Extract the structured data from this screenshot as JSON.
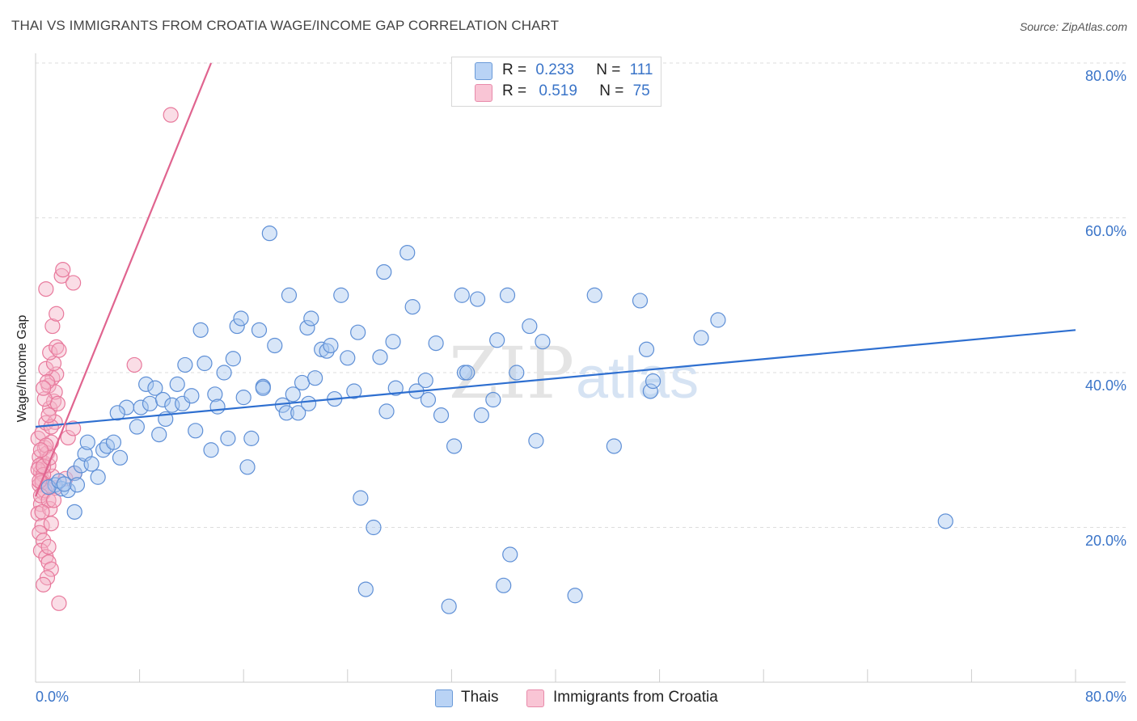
{
  "title": "THAI VS IMMIGRANTS FROM CROATIA WAGE/INCOME GAP CORRELATION CHART",
  "source": "Source: ZipAtlas.com",
  "watermark": "ZIPatlas",
  "legend_top": {
    "rows": [
      {
        "r_label": "R =",
        "r_value": "0.233",
        "n_label": "N =",
        "n_value": "111"
      },
      {
        "r_label": "R =",
        "r_value": "0.519",
        "n_label": "N =",
        "n_value": "75"
      }
    ]
  },
  "legend_bottom": {
    "items": [
      {
        "label": "Thais"
      },
      {
        "label": "Immigrants from Croatia"
      }
    ]
  },
  "colors": {
    "thais_fill": "#a9c8f0",
    "thais_stroke": "#5e8fd6",
    "thais_line": "#2e6fd0",
    "croatia_fill": "#f5b4c8",
    "croatia_stroke": "#e8799c",
    "croatia_line": "#e0648f",
    "axis_text": "#3a74c8",
    "grid": "#dddddd"
  },
  "chart_data": {
    "type": "scatter",
    "title": "THAI VS IMMIGRANTS FROM CROATIA WAGE/INCOME GAP CORRELATION CHART",
    "xlabel": "",
    "ylabel": "Wage/Income Gap",
    "xlim": [
      0,
      80
    ],
    "ylim": [
      0,
      80
    ],
    "x_tick_labels": [
      "0.0%",
      "80.0%"
    ],
    "y_tick_labels": [
      "20.0%",
      "40.0%",
      "60.0%",
      "80.0%"
    ],
    "y_ticks": [
      20,
      40,
      60,
      80
    ],
    "grid": true,
    "legend_position": "top-center",
    "series": [
      {
        "name": "Thais",
        "R": 0.233,
        "N": 111,
        "trend": {
          "x0": 0,
          "y0": 33.0,
          "x1": 80,
          "y1": 45.5
        },
        "points": [
          [
            1.5,
            25.5
          ],
          [
            2.0,
            25.0
          ],
          [
            2.5,
            24.8
          ],
          [
            1.0,
            25.2
          ],
          [
            1.8,
            26.0
          ],
          [
            2.2,
            25.6
          ],
          [
            3.0,
            27.0
          ],
          [
            3.5,
            28.0
          ],
          [
            3.2,
            25.5
          ],
          [
            3.0,
            22.0
          ],
          [
            3.8,
            29.5
          ],
          [
            4.3,
            28.2
          ],
          [
            4.0,
            31.0
          ],
          [
            4.8,
            26.5
          ],
          [
            5.2,
            30.0
          ],
          [
            5.5,
            30.5
          ],
          [
            6.0,
            31.0
          ],
          [
            6.5,
            29.0
          ],
          [
            7.0,
            35.5
          ],
          [
            7.8,
            33.0
          ],
          [
            6.3,
            34.8
          ],
          [
            8.1,
            35.5
          ],
          [
            8.5,
            38.5
          ],
          [
            8.8,
            36.0
          ],
          [
            9.2,
            38.0
          ],
          [
            9.5,
            32.0
          ],
          [
            9.8,
            36.5
          ],
          [
            10.0,
            34.0
          ],
          [
            10.5,
            35.8
          ],
          [
            10.9,
            38.5
          ],
          [
            11.3,
            36.0
          ],
          [
            11.5,
            41.0
          ],
          [
            12.0,
            37.0
          ],
          [
            12.3,
            32.5
          ],
          [
            12.7,
            45.5
          ],
          [
            13.0,
            41.2
          ],
          [
            13.5,
            30.0
          ],
          [
            13.8,
            37.2
          ],
          [
            14.0,
            35.6
          ],
          [
            14.5,
            40.0
          ],
          [
            14.8,
            31.5
          ],
          [
            15.2,
            41.8
          ],
          [
            15.5,
            46.0
          ],
          [
            15.8,
            47.0
          ],
          [
            16.0,
            36.8
          ],
          [
            16.3,
            27.8
          ],
          [
            16.6,
            31.5
          ],
          [
            17.2,
            45.5
          ],
          [
            17.5,
            38.2
          ],
          [
            18.0,
            58.0
          ],
          [
            18.4,
            43.5
          ],
          [
            19.0,
            35.8
          ],
          [
            19.3,
            34.8
          ],
          [
            19.5,
            50.0
          ],
          [
            19.8,
            37.2
          ],
          [
            20.2,
            34.8
          ],
          [
            20.5,
            38.7
          ],
          [
            20.9,
            45.8
          ],
          [
            21.2,
            47.0
          ],
          [
            21.5,
            39.3
          ],
          [
            22.0,
            43.0
          ],
          [
            22.4,
            42.8
          ],
          [
            22.7,
            43.5
          ],
          [
            23.0,
            36.6
          ],
          [
            23.5,
            50.0
          ],
          [
            24.0,
            41.9
          ],
          [
            24.5,
            37.6
          ],
          [
            24.8,
            45.2
          ],
          [
            25.0,
            23.8
          ],
          [
            26.0,
            20.0
          ],
          [
            25.4,
            12.0
          ],
          [
            26.8,
            53.0
          ],
          [
            27.0,
            35.0
          ],
          [
            27.5,
            44.0
          ],
          [
            27.7,
            38.0
          ],
          [
            28.6,
            55.5
          ],
          [
            29.0,
            48.5
          ],
          [
            29.3,
            37.6
          ],
          [
            30.0,
            39.0
          ],
          [
            30.2,
            36.5
          ],
          [
            30.8,
            43.8
          ],
          [
            31.2,
            34.5
          ],
          [
            31.8,
            9.8
          ],
          [
            32.2,
            30.5
          ],
          [
            32.8,
            50.0
          ],
          [
            33.0,
            40.0
          ],
          [
            33.2,
            40.0
          ],
          [
            34.0,
            49.5
          ],
          [
            34.3,
            34.5
          ],
          [
            35.2,
            36.5
          ],
          [
            35.5,
            44.2
          ],
          [
            36.0,
            12.5
          ],
          [
            36.3,
            50.0
          ],
          [
            36.5,
            16.5
          ],
          [
            37.0,
            40.0
          ],
          [
            38.0,
            46.0
          ],
          [
            38.5,
            31.2
          ],
          [
            39.0,
            44.0
          ],
          [
            41.5,
            11.2
          ],
          [
            43.0,
            50.0
          ],
          [
            44.5,
            30.5
          ],
          [
            46.5,
            49.3
          ],
          [
            47.0,
            43.0
          ],
          [
            47.3,
            37.6
          ],
          [
            47.5,
            38.9
          ],
          [
            51.2,
            44.5
          ],
          [
            52.5,
            46.8
          ],
          [
            70.0,
            20.8
          ],
          [
            17.5,
            38.0
          ],
          [
            21.0,
            36.0
          ],
          [
            26.5,
            42.0
          ]
        ]
      },
      {
        "name": "Immigrants from Croatia",
        "R": 0.519,
        "N": 75,
        "trend": {
          "x0": 0,
          "y0": 24.0,
          "x1": 13.5,
          "y1": 80.0
        },
        "points": [
          [
            0.3,
            25.5
          ],
          [
            0.5,
            26.2
          ],
          [
            0.4,
            27.2
          ],
          [
            0.6,
            28.4
          ],
          [
            0.3,
            29.1
          ],
          [
            0.7,
            30.3
          ],
          [
            0.2,
            31.5
          ],
          [
            0.5,
            32.2
          ],
          [
            0.8,
            33.5
          ],
          [
            0.6,
            24.5
          ],
          [
            0.4,
            23.0
          ],
          [
            0.2,
            21.8
          ],
          [
            0.5,
            20.2
          ],
          [
            0.3,
            19.3
          ],
          [
            0.6,
            18.3
          ],
          [
            0.4,
            17.0
          ],
          [
            0.8,
            16.2
          ],
          [
            1.0,
            15.5
          ],
          [
            1.2,
            14.6
          ],
          [
            0.9,
            13.5
          ],
          [
            0.6,
            12.6
          ],
          [
            1.8,
            10.2
          ],
          [
            1.0,
            17.5
          ],
          [
            1.2,
            20.5
          ],
          [
            1.1,
            22.4
          ],
          [
            1.5,
            25.1
          ],
          [
            1.3,
            26.6
          ],
          [
            1.0,
            28.0
          ],
          [
            0.9,
            29.6
          ],
          [
            1.2,
            31.0
          ],
          [
            1.5,
            33.6
          ],
          [
            1.1,
            35.4
          ],
          [
            1.4,
            36.3
          ],
          [
            1.0,
            38.3
          ],
          [
            1.3,
            39.3
          ],
          [
            1.6,
            39.8
          ],
          [
            1.5,
            37.5
          ],
          [
            0.8,
            40.5
          ],
          [
            1.4,
            41.2
          ],
          [
            1.1,
            42.6
          ],
          [
            1.6,
            43.3
          ],
          [
            1.8,
            42.9
          ],
          [
            1.3,
            46.0
          ],
          [
            1.6,
            47.6
          ],
          [
            0.8,
            50.8
          ],
          [
            2.0,
            52.5
          ],
          [
            2.1,
            53.3
          ],
          [
            2.9,
            51.6
          ],
          [
            2.3,
            26.3
          ],
          [
            2.5,
            31.6
          ],
          [
            2.9,
            32.8
          ],
          [
            1.7,
            36.0
          ],
          [
            3.0,
            27.0
          ],
          [
            0.3,
            28.0
          ],
          [
            0.2,
            27.5
          ],
          [
            0.6,
            26.8
          ],
          [
            0.5,
            25.8
          ],
          [
            0.9,
            25.3
          ],
          [
            0.7,
            24.8
          ],
          [
            0.4,
            24.1
          ],
          [
            1.0,
            23.5
          ],
          [
            0.6,
            27.9
          ],
          [
            0.8,
            30.6
          ],
          [
            1.1,
            29.0
          ],
          [
            0.4,
            30.0
          ],
          [
            1.2,
            33.0
          ],
          [
            0.9,
            38.8
          ],
          [
            0.7,
            36.6
          ],
          [
            1.4,
            23.5
          ],
          [
            0.5,
            22.0
          ],
          [
            7.6,
            41.0
          ],
          [
            10.4,
            73.3
          ],
          [
            0.6,
            38.0
          ],
          [
            1.0,
            34.5
          ],
          [
            0.3,
            26.0
          ]
        ]
      }
    ]
  }
}
